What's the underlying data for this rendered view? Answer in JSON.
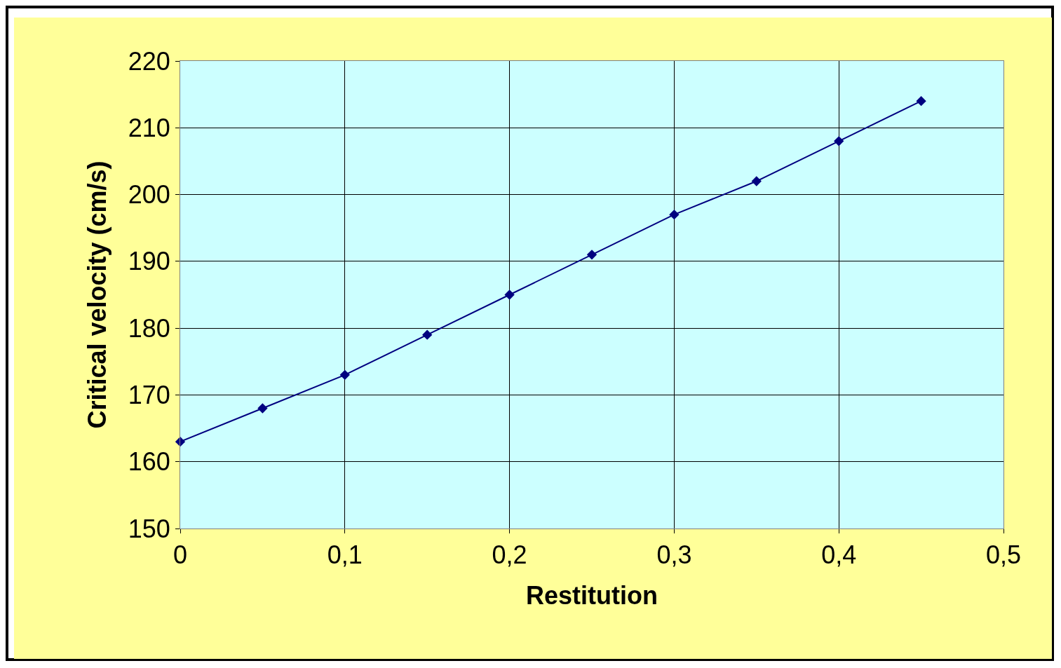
{
  "chart_data": {
    "type": "line",
    "xlabel": "Restitution",
    "ylabel": "Critical velocity (cm/s)",
    "x": [
      0,
      0.05,
      0.1,
      0.15,
      0.2,
      0.25,
      0.3,
      0.35,
      0.4,
      0.45
    ],
    "series": [
      {
        "color": "#000080",
        "values": [
          163,
          168,
          173,
          179,
          185,
          191,
          197,
          202,
          208,
          214
        ]
      }
    ],
    "xlim": [
      0,
      0.5
    ],
    "xticks": [
      0,
      {
        "value": 0.1,
        "label": "0,1"
      },
      {
        "value": 0.2,
        "label": "0,2"
      },
      {
        "value": 0.3,
        "label": "0,3"
      },
      {
        "value": 0.4,
        "label": "0,4"
      },
      {
        "value": 0.5,
        "label": "0,5"
      }
    ],
    "ylim": [
      150,
      220
    ],
    "yticks": [
      150,
      160,
      170,
      180,
      190,
      200,
      210,
      220
    ],
    "grid": true,
    "legend": false,
    "marker": "diamond",
    "line_style": "solid"
  }
}
